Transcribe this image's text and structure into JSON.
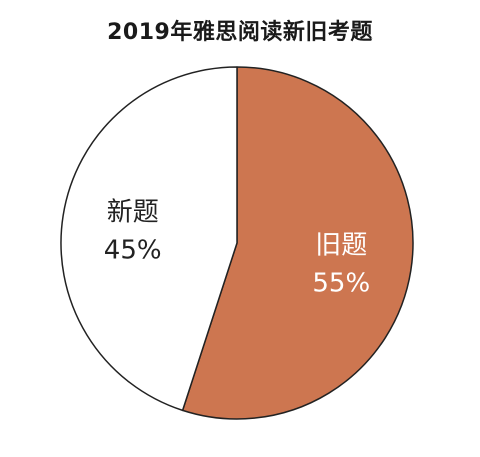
{
  "chart_data": {
    "type": "pie",
    "title": "2019年雅思阅读新旧考题",
    "slices": [
      {
        "label": "旧题",
        "value": 55,
        "value_label": "55%",
        "color": "#cd7650",
        "text_color": "#ffffff"
      },
      {
        "label": "新题",
        "value": 45,
        "value_label": "45%",
        "color": "#ffffff",
        "text_color": "#222222"
      }
    ],
    "outline_color": "#222222",
    "start": "top",
    "direction": "clockwise"
  }
}
